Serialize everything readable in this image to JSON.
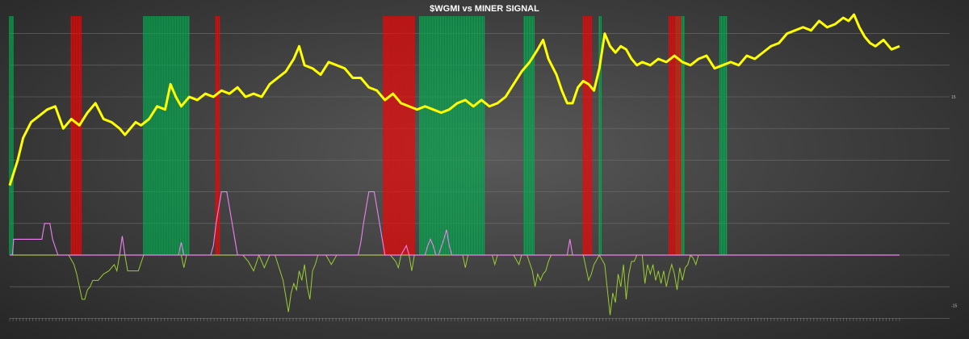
{
  "chart_data": {
    "type": "line",
    "title": "$WGMI vs MINER SIGNAL",
    "xlabel": "",
    "ylabel": "",
    "x_count": 271,
    "right_axis_ticks": [
      "15",
      "-15"
    ],
    "grid": true,
    "colors": {
      "price": "#ffff00",
      "signal_positive": "#ee82ee",
      "signal_negative": "#9acd32",
      "green_band": "#00b050",
      "red_band": "#ff0000",
      "zero_line": "#ee82ee"
    },
    "series": [
      {
        "name": "$WGMI",
        "points": [
          [
            0,
            2.2
          ],
          [
            6,
            3.0
          ],
          [
            10,
            3.7
          ],
          [
            16,
            4.2
          ],
          [
            22,
            4.4
          ],
          [
            28,
            4.6
          ],
          [
            34,
            4.7
          ],
          [
            40,
            4.0
          ],
          [
            46,
            4.3
          ],
          [
            52,
            4.1
          ],
          [
            58,
            4.5
          ],
          [
            64,
            4.8
          ],
          [
            70,
            4.3
          ],
          [
            76,
            4.2
          ],
          [
            82,
            4.0
          ],
          [
            86,
            3.8
          ],
          [
            90,
            4.0
          ],
          [
            94,
            4.2
          ],
          [
            98,
            4.1
          ],
          [
            104,
            4.3
          ],
          [
            110,
            4.7
          ],
          [
            116,
            4.6
          ],
          [
            120,
            5.4
          ],
          [
            124,
            5.0
          ],
          [
            128,
            4.7
          ],
          [
            134,
            5.0
          ],
          [
            140,
            4.9
          ],
          [
            146,
            5.1
          ],
          [
            152,
            5.0
          ],
          [
            158,
            5.2
          ],
          [
            164,
            5.1
          ],
          [
            170,
            5.3
          ],
          [
            176,
            5.0
          ],
          [
            182,
            5.1
          ],
          [
            188,
            5.0
          ],
          [
            194,
            5.4
          ],
          [
            200,
            5.6
          ],
          [
            206,
            5.8
          ],
          [
            212,
            6.2
          ],
          [
            216,
            6.6
          ],
          [
            220,
            6.0
          ],
          [
            226,
            5.9
          ],
          [
            232,
            5.7
          ],
          [
            238,
            6.1
          ],
          [
            244,
            6.0
          ],
          [
            250,
            5.9
          ],
          [
            256,
            5.6
          ],
          [
            262,
            5.6
          ],
          [
            268,
            5.3
          ],
          [
            274,
            5.2
          ],
          [
            280,
            4.9
          ],
          [
            286,
            5.1
          ],
          [
            292,
            4.8
          ],
          [
            298,
            4.7
          ],
          [
            304,
            4.6
          ],
          [
            310,
            4.7
          ],
          [
            316,
            4.6
          ],
          [
            322,
            4.5
          ],
          [
            328,
            4.6
          ],
          [
            334,
            4.8
          ],
          [
            340,
            4.9
          ],
          [
            346,
            4.7
          ],
          [
            352,
            4.9
          ],
          [
            358,
            4.7
          ],
          [
            364,
            4.8
          ],
          [
            370,
            5.0
          ],
          [
            376,
            5.4
          ],
          [
            382,
            5.8
          ],
          [
            388,
            6.1
          ],
          [
            394,
            6.5
          ],
          [
            398,
            6.8
          ],
          [
            402,
            6.2
          ],
          [
            408,
            5.7
          ],
          [
            412,
            5.2
          ],
          [
            416,
            4.8
          ],
          [
            420,
            4.8
          ],
          [
            424,
            5.3
          ],
          [
            428,
            5.5
          ],
          [
            432,
            5.4
          ],
          [
            436,
            5.2
          ],
          [
            440,
            5.9
          ],
          [
            444,
            7.0
          ],
          [
            448,
            6.6
          ],
          [
            452,
            6.4
          ],
          [
            456,
            6.6
          ],
          [
            460,
            6.5
          ],
          [
            464,
            6.2
          ],
          [
            468,
            6.0
          ],
          [
            472,
            6.1
          ],
          [
            478,
            6.0
          ],
          [
            484,
            6.2
          ],
          [
            490,
            6.1
          ],
          [
            496,
            6.3
          ],
          [
            502,
            6.1
          ],
          [
            508,
            6.0
          ],
          [
            514,
            6.2
          ],
          [
            520,
            6.3
          ],
          [
            526,
            5.9
          ],
          [
            532,
            6.0
          ],
          [
            538,
            6.1
          ],
          [
            544,
            6.0
          ],
          [
            550,
            6.3
          ],
          [
            556,
            6.2
          ],
          [
            562,
            6.4
          ],
          [
            568,
            6.6
          ],
          [
            574,
            6.7
          ],
          [
            580,
            7.0
          ],
          [
            586,
            7.1
          ],
          [
            592,
            7.2
          ],
          [
            598,
            7.1
          ],
          [
            604,
            7.4
          ],
          [
            610,
            7.2
          ],
          [
            616,
            7.3
          ],
          [
            622,
            7.5
          ],
          [
            626,
            7.4
          ],
          [
            630,
            7.6
          ],
          [
            634,
            7.2
          ],
          [
            638,
            6.9
          ],
          [
            642,
            6.7
          ],
          [
            646,
            6.6
          ],
          [
            652,
            6.8
          ],
          [
            658,
            6.5
          ],
          [
            664,
            6.6
          ]
        ]
      },
      {
        "name": "signal",
        "points": [
          [
            0,
            0
          ],
          [
            2,
            0
          ],
          [
            3,
            0.5
          ],
          [
            8,
            0.5
          ],
          [
            10,
            0.5
          ],
          [
            12,
            0.5
          ],
          [
            16,
            0.5
          ],
          [
            20,
            0.5
          ],
          [
            24,
            0.5
          ],
          [
            26,
            1.0
          ],
          [
            30,
            1.0
          ],
          [
            32,
            0.5
          ],
          [
            36,
            0
          ],
          [
            40,
            0
          ],
          [
            44,
            0
          ],
          [
            48,
            -0.3
          ],
          [
            50,
            -0.6
          ],
          [
            52,
            -1.0
          ],
          [
            54,
            -1.4
          ],
          [
            56,
            -1.4
          ],
          [
            58,
            -1.1
          ],
          [
            60,
            -1.0
          ],
          [
            62,
            -0.8
          ],
          [
            66,
            -0.8
          ],
          [
            70,
            -0.6
          ],
          [
            74,
            -0.5
          ],
          [
            78,
            -0.3
          ],
          [
            80,
            -0.5
          ],
          [
            82,
            0
          ],
          [
            84,
            0.6
          ],
          [
            86,
            0
          ],
          [
            88,
            -0.5
          ],
          [
            92,
            -0.5
          ],
          [
            96,
            -0.5
          ],
          [
            100,
            0
          ],
          [
            110,
            0
          ],
          [
            120,
            0
          ],
          [
            126,
            0
          ],
          [
            128,
            0.4
          ],
          [
            130,
            -0.4
          ],
          [
            132,
            0
          ],
          [
            140,
            0
          ],
          [
            150,
            0
          ],
          [
            152,
            0.3
          ],
          [
            154,
            1.0
          ],
          [
            156,
            1.5
          ],
          [
            158,
            2.0
          ],
          [
            162,
            2.0
          ],
          [
            164,
            1.5
          ],
          [
            166,
            1.0
          ],
          [
            168,
            0.5
          ],
          [
            170,
            0
          ],
          [
            174,
            0
          ],
          [
            178,
            -0.2
          ],
          [
            182,
            -0.5
          ],
          [
            186,
            0
          ],
          [
            190,
            -0.4
          ],
          [
            194,
            0
          ],
          [
            198,
            0
          ],
          [
            204,
            -0.8
          ],
          [
            206,
            -1.3
          ],
          [
            208,
            -1.8
          ],
          [
            210,
            -1.2
          ],
          [
            212,
            -0.9
          ],
          [
            214,
            -1.1
          ],
          [
            216,
            -0.5
          ],
          [
            218,
            -0.8
          ],
          [
            220,
            -0.3
          ],
          [
            222,
            -1.0
          ],
          [
            224,
            -1.4
          ],
          [
            226,
            -0.5
          ],
          [
            228,
            -0.3
          ],
          [
            230,
            0
          ],
          [
            236,
            0
          ],
          [
            240,
            -0.3
          ],
          [
            244,
            0
          ],
          [
            250,
            0
          ],
          [
            256,
            0
          ],
          [
            260,
            0
          ],
          [
            262,
            0.4
          ],
          [
            264,
            1.0
          ],
          [
            266,
            1.5
          ],
          [
            268,
            2.0
          ],
          [
            272,
            2.0
          ],
          [
            274,
            1.5
          ],
          [
            276,
            1.0
          ],
          [
            278,
            0.5
          ],
          [
            280,
            0
          ],
          [
            284,
            0
          ],
          [
            288,
            -0.2
          ],
          [
            290,
            -0.4
          ],
          [
            292,
            0
          ],
          [
            296,
            0.3
          ],
          [
            298,
            0
          ],
          [
            300,
            -0.5
          ],
          [
            302,
            0
          ],
          [
            304,
            0
          ],
          [
            310,
            0
          ],
          [
            312,
            0.3
          ],
          [
            314,
            0.5
          ],
          [
            316,
            0.3
          ],
          [
            318,
            0
          ],
          [
            320,
            0
          ],
          [
            324,
            0.5
          ],
          [
            326,
            0.8
          ],
          [
            328,
            0.3
          ],
          [
            330,
            0
          ],
          [
            334,
            0
          ],
          [
            338,
            0
          ],
          [
            340,
            -0.4
          ],
          [
            342,
            0
          ],
          [
            346,
            0
          ],
          [
            350,
            0
          ],
          [
            356,
            0
          ],
          [
            360,
            0
          ],
          [
            362,
            -0.3
          ],
          [
            364,
            0
          ],
          [
            368,
            0
          ],
          [
            372,
            0
          ],
          [
            376,
            0
          ],
          [
            380,
            -0.3
          ],
          [
            382,
            0
          ],
          [
            386,
            0
          ],
          [
            390,
            -0.5
          ],
          [
            392,
            -1.0
          ],
          [
            394,
            -0.6
          ],
          [
            396,
            -0.8
          ],
          [
            398,
            -0.6
          ],
          [
            400,
            -0.5
          ],
          [
            402,
            -0.2
          ],
          [
            404,
            0
          ],
          [
            408,
            0
          ],
          [
            412,
            0
          ],
          [
            416,
            0
          ],
          [
            418,
            0.5
          ],
          [
            420,
            0
          ],
          [
            424,
            0
          ],
          [
            428,
            0
          ],
          [
            430,
            -0.4
          ],
          [
            432,
            -0.8
          ],
          [
            434,
            -0.6
          ],
          [
            436,
            -0.3
          ],
          [
            440,
            0
          ],
          [
            444,
            -0.3
          ],
          [
            446,
            -1.1
          ],
          [
            448,
            -1.9
          ],
          [
            450,
            -1.2
          ],
          [
            452,
            -1.5
          ],
          [
            454,
            -0.6
          ],
          [
            456,
            -1.0
          ],
          [
            458,
            -0.3
          ],
          [
            460,
            -1.4
          ],
          [
            462,
            -0.6
          ],
          [
            464,
            -0.2
          ],
          [
            466,
            -0.2
          ],
          [
            468,
            0
          ],
          [
            470,
            0
          ],
          [
            472,
            0
          ],
          [
            474,
            -0.9
          ],
          [
            476,
            -0.3
          ],
          [
            478,
            -0.6
          ],
          [
            480,
            -0.3
          ],
          [
            482,
            -0.8
          ],
          [
            484,
            -0.5
          ],
          [
            486,
            -0.9
          ],
          [
            488,
            -0.5
          ],
          [
            490,
            -1.0
          ],
          [
            492,
            -0.6
          ],
          [
            494,
            -0.3
          ],
          [
            496,
            -0.6
          ],
          [
            498,
            -1.1
          ],
          [
            500,
            -0.4
          ],
          [
            502,
            -0.8
          ],
          [
            504,
            -0.4
          ],
          [
            506,
            -0.3
          ],
          [
            508,
            0
          ],
          [
            510,
            -0.1
          ],
          [
            512,
            -0.3
          ],
          [
            514,
            0
          ]
        ]
      }
    ],
    "green_bands": [
      [
        0,
        3
      ],
      [
        100,
        134
      ],
      [
        306,
        355
      ],
      [
        384,
        392
      ],
      [
        440,
        442
      ],
      [
        497,
        503
      ],
      [
        530,
        535
      ]
    ],
    "red_bands": [
      [
        46,
        54
      ],
      [
        154,
        157
      ],
      [
        279,
        302
      ],
      [
        428,
        434
      ],
      [
        492,
        501
      ]
    ]
  }
}
